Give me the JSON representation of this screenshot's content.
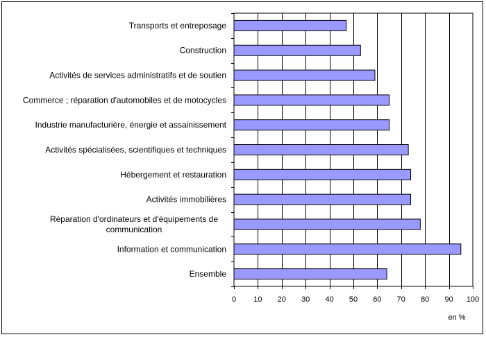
{
  "chart_data": {
    "type": "bar",
    "orientation": "horizontal",
    "categories": [
      [
        "Transports et entreposage"
      ],
      [
        "Construction"
      ],
      [
        "Activités de services administratifs et de soutien"
      ],
      [
        "Commerce ; réparation d'automobiles et de motocycles"
      ],
      [
        "Industrie manufacturière, énergie et assainissement"
      ],
      [
        "Activités spécialisées, scientifiques et techniques"
      ],
      [
        "Hébergement et restauration"
      ],
      [
        "Activités immobilières"
      ],
      [
        "Réparation d'ordinateurs et d'équipements de",
        "communication"
      ],
      [
        "Information et communication"
      ],
      [
        "Ensemble"
      ]
    ],
    "values": [
      47,
      53,
      59,
      65,
      65,
      73,
      74,
      74,
      78,
      95,
      64
    ],
    "xlabel": "en %",
    "xlim": [
      0,
      100
    ],
    "xticks": [
      0,
      10,
      20,
      30,
      40,
      50,
      60,
      70,
      80,
      90,
      100
    ],
    "grid": "vertical",
    "bar_color": "#9999ff",
    "legend": "none"
  }
}
